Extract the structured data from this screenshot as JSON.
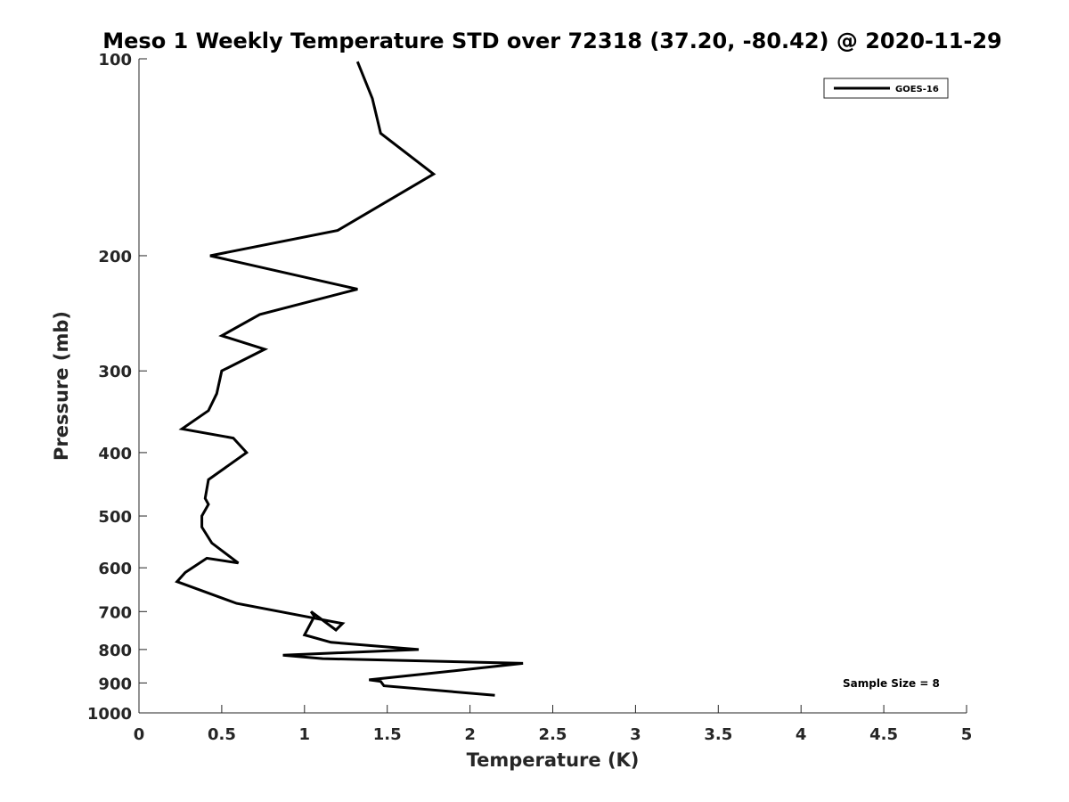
{
  "chart_data": {
    "type": "line",
    "title": "Meso 1 Weekly Temperature STD over 72318 (37.20, -80.42) @ 2020-11-29",
    "xlabel": "Temperature (K)",
    "ylabel": "Pressure (mb)",
    "xlim": [
      0,
      5
    ],
    "ylim": [
      100,
      1000
    ],
    "y_scale": "log",
    "y_reversed": true,
    "x_ticks": [
      0,
      0.5,
      1,
      1.5,
      2,
      2.5,
      3,
      3.5,
      4,
      4.5,
      5
    ],
    "x_tick_labels": [
      "0",
      "0.5",
      "1",
      "1.5",
      "2",
      "2.5",
      "3",
      "3.5",
      "4",
      "4.5",
      "5"
    ],
    "y_ticks": [
      100,
      200,
      300,
      400,
      500,
      600,
      700,
      800,
      900,
      1000
    ],
    "y_tick_labels": [
      "100",
      "200",
      "300",
      "400",
      "500",
      "600",
      "700",
      "800",
      "900",
      "1000"
    ],
    "grid": false,
    "legend_position": "top-right",
    "annotation": "Sample Size = 8",
    "series": [
      {
        "name": "GOES-16",
        "color": "#000000",
        "x": [
          1.32,
          1.41,
          1.46,
          1.78,
          1.2,
          0.43,
          1.32,
          0.73,
          0.5,
          0.76,
          0.5,
          0.47,
          0.42,
          0.26,
          0.57,
          0.65,
          0.42,
          0.4,
          0.42,
          0.38,
          0.38,
          0.44,
          0.6,
          0.41,
          0.28,
          0.23,
          0.59,
          1.23,
          1.19,
          1.04,
          1.06,
          1.0,
          1.16,
          1.69,
          0.87,
          1.11,
          2.32,
          1.95,
          1.39,
          1.46,
          1.48,
          2.15
        ],
        "y": [
          101,
          115,
          130,
          150,
          183,
          200,
          225,
          246,
          265,
          278,
          300,
          325,
          345,
          368,
          380,
          400,
          440,
          470,
          480,
          500,
          520,
          550,
          590,
          580,
          610,
          630,
          680,
          730,
          747,
          700,
          712,
          760,
          780,
          800,
          816,
          826,
          840,
          860,
          890,
          895,
          909,
          940
        ]
      }
    ]
  }
}
